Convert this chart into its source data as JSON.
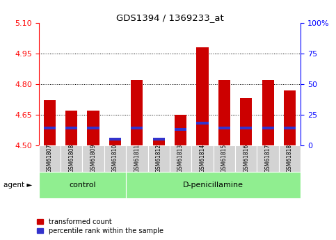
{
  "title": "GDS1394 / 1369233_at",
  "samples": [
    "GSM61807",
    "GSM61808",
    "GSM61809",
    "GSM61810",
    "GSM61811",
    "GSM61812",
    "GSM61813",
    "GSM61814",
    "GSM61815",
    "GSM61816",
    "GSM61817",
    "GSM61818"
  ],
  "transformed_count": [
    4.72,
    4.67,
    4.67,
    4.53,
    4.82,
    4.53,
    4.65,
    4.98,
    4.82,
    4.73,
    4.82,
    4.77
  ],
  "percentile_rank": [
    14,
    14,
    14,
    5,
    14,
    5,
    13,
    18,
    14,
    14,
    14,
    14
  ],
  "groups": [
    {
      "label": "control",
      "start": 0,
      "end": 4
    },
    {
      "label": "D-penicillamine",
      "start": 4,
      "end": 12
    }
  ],
  "ylim": [
    4.5,
    5.1
  ],
  "y_left_ticks": [
    4.5,
    4.65,
    4.8,
    4.95,
    5.1
  ],
  "y_right_ticks": [
    0,
    25,
    50,
    75,
    100
  ],
  "bar_color": "#cc0000",
  "blue_color": "#3333cc",
  "bg_plot": "#ffffff",
  "sample_bg": "#d3d3d3",
  "group_bg": "#90ee90",
  "bar_width": 0.55,
  "legend_items": [
    {
      "color": "#cc0000",
      "label": "transformed count"
    },
    {
      "color": "#3333cc",
      "label": "percentile rank within the sample"
    }
  ],
  "agent_label": "agent ►",
  "figsize": [
    4.83,
    3.45
  ],
  "dpi": 100
}
